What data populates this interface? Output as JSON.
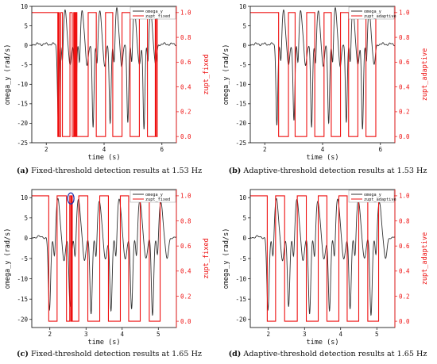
{
  "colors": {
    "omega": "#333333",
    "zupt": "#ee1111",
    "axis_right": "#ee1111",
    "marker": "#2233aa"
  },
  "chart_data": [
    {
      "type": "line",
      "panel_letter": "(a)",
      "caption_text": "Fixed-threshold detection results at 1.53 Hz",
      "xlabel": "time (s)",
      "ylabel_left": "omega_y (rad/s)",
      "ylabel_right": "zupt_fixed",
      "xlim": [
        1.5,
        6.5
      ],
      "xticks": [
        2,
        4,
        6
      ],
      "xtick_labels": [
        "2",
        "4",
        "6"
      ],
      "ylim_left": [
        -25,
        10
      ],
      "yticks_left": [
        10,
        5,
        0,
        -5,
        -10,
        -15,
        -20,
        -25
      ],
      "yticks_left_labels": [
        "10",
        "5",
        "0",
        "-5",
        "-10",
        "-15",
        "-20",
        "-25"
      ],
      "ylim_right": [
        -0.05,
        1.05
      ],
      "yticks_right": [
        1.0,
        0.8,
        0.6,
        0.4,
        0.2,
        0.0
      ],
      "yticks_right_labels": [
        "1.0",
        "0.8",
        "0.6",
        "0.4",
        "0.2",
        "0.0"
      ],
      "legend": [
        "omega_y",
        "zupt_fixed"
      ],
      "series": [
        {
          "name": "omega_y",
          "axis": "left",
          "swing_times": [
            2.58,
            3.17,
            3.78,
            4.37,
            4.98,
            5.54
          ],
          "baseline": 0.3,
          "peak": 9.3,
          "trough": -21.5
        },
        {
          "name": "zupt_fixed",
          "axis": "right",
          "transitions": [
            [
              1.5,
              1
            ],
            [
              2.4,
              0
            ],
            [
              2.42,
              1
            ],
            [
              2.45,
              0
            ],
            [
              2.5,
              1
            ],
            [
              2.56,
              0
            ],
            [
              2.82,
              1
            ],
            [
              2.9,
              0
            ],
            [
              2.95,
              1
            ],
            [
              2.97,
              0
            ],
            [
              2.99,
              1
            ],
            [
              3.02,
              0
            ],
            [
              3.04,
              1
            ],
            [
              3.06,
              0
            ],
            [
              3.45,
              1
            ],
            [
              3.73,
              0
            ],
            [
              4.05,
              1
            ],
            [
              4.3,
              0
            ],
            [
              4.62,
              1
            ],
            [
              4.9,
              0
            ],
            [
              5.22,
              1
            ],
            [
              5.5,
              0
            ],
            [
              5.77,
              1
            ],
            [
              5.8,
              0
            ],
            [
              5.84,
              1
            ],
            [
              6.5,
              1
            ]
          ]
        }
      ]
    },
    {
      "type": "line",
      "panel_letter": "(b)",
      "caption_text": "Adaptive-threshold detection results at 1.53 Hz",
      "xlabel": "time (s)",
      "ylabel_left": "omega_y (rad/s)",
      "ylabel_right": "zupt_adaptive",
      "xlim": [
        1.5,
        6.5
      ],
      "xticks": [
        2,
        4,
        6
      ],
      "xtick_labels": [
        "2",
        "4",
        "6"
      ],
      "ylim_left": [
        -25,
        10
      ],
      "yticks_left": [
        10,
        5,
        0,
        -5,
        -10,
        -15,
        -20,
        -25
      ],
      "yticks_left_labels": [
        "10",
        "5",
        "0",
        "-5",
        "-10",
        "-15",
        "-20",
        "-25"
      ],
      "ylim_right": [
        -0.05,
        1.05
      ],
      "yticks_right": [
        1.0,
        0.8,
        0.6,
        0.4,
        0.2,
        0.0
      ],
      "yticks_right_labels": [
        "1.0",
        "0.8",
        "0.6",
        "0.4",
        "0.2",
        "0.0"
      ],
      "legend": [
        "omega_y",
        "zupt_adaptive"
      ],
      "series": [
        {
          "name": "omega_y",
          "axis": "left",
          "swing_times": [
            2.58,
            3.17,
            3.78,
            4.37,
            4.98,
            5.54
          ],
          "baseline": 0.3,
          "peak": 9.3,
          "trough": -21.5
        },
        {
          "name": "zupt_adaptive",
          "axis": "right",
          "transitions": [
            [
              1.5,
              1
            ],
            [
              2.48,
              0
            ],
            [
              2.82,
              1
            ],
            [
              3.05,
              0
            ],
            [
              3.45,
              1
            ],
            [
              3.73,
              0
            ],
            [
              4.05,
              1
            ],
            [
              4.3,
              0
            ],
            [
              4.62,
              1
            ],
            [
              4.9,
              0
            ],
            [
              5.22,
              1
            ],
            [
              5.5,
              0
            ],
            [
              5.84,
              1
            ],
            [
              6.5,
              1
            ]
          ]
        }
      ]
    },
    {
      "type": "line",
      "panel_letter": "(c)",
      "caption_text": "Fixed-threshold detection results at 1.65 Hz",
      "xlabel": "time (s)",
      "ylabel_left": "omega_y (rad/s)",
      "ylabel_right": "zupt_fixed",
      "xlim": [
        1.5,
        5.5
      ],
      "xticks": [
        2,
        3,
        4,
        5
      ],
      "xtick_labels": [
        "2",
        "3",
        "4",
        "5"
      ],
      "ylim_left": [
        -22,
        12
      ],
      "yticks_left": [
        10,
        5,
        0,
        -5,
        -10,
        -15,
        -20
      ],
      "yticks_left_labels": [
        "10",
        "5",
        "0",
        "-5",
        "-10",
        "-15",
        "-20"
      ],
      "ylim_right": [
        -0.05,
        1.05
      ],
      "yticks_right": [
        1.0,
        0.8,
        0.6,
        0.4,
        0.2,
        0.0
      ],
      "yticks_right_labels": [
        "1.0",
        "0.8",
        "0.6",
        "0.4",
        "0.2",
        "0.0"
      ],
      "legend": [
        "omega_y",
        "zupt_fixed"
      ],
      "highlight": {
        "x": 2.58,
        "y": 9.8
      },
      "series": [
        {
          "name": "omega_y",
          "axis": "left",
          "swing_times": [
            2.15,
            2.72,
            3.3,
            3.85,
            4.42,
            5.0
          ],
          "baseline": 0.3,
          "peak": 9.5,
          "trough": -19.0
        },
        {
          "name": "zupt_fixed",
          "axis": "right",
          "transitions": [
            [
              1.5,
              1
            ],
            [
              1.97,
              0
            ],
            [
              2.2,
              1
            ],
            [
              2.46,
              0
            ],
            [
              2.55,
              1
            ],
            [
              2.58,
              0
            ],
            [
              2.6,
              1
            ],
            [
              2.62,
              0
            ],
            [
              2.8,
              1
            ],
            [
              3.05,
              0
            ],
            [
              3.38,
              1
            ],
            [
              3.62,
              0
            ],
            [
              3.95,
              1
            ],
            [
              4.18,
              0
            ],
            [
              4.5,
              1
            ],
            [
              4.75,
              0
            ],
            [
              5.05,
              1
            ],
            [
              5.5,
              1
            ]
          ]
        }
      ]
    },
    {
      "type": "line",
      "panel_letter": "(d)",
      "caption_text": "Adaptive-threshold detection results at 1.65 Hz",
      "xlabel": "time (s)",
      "ylabel_left": "omega_y (rad/s)",
      "ylabel_right": "zupt_adaptive",
      "xlim": [
        1.5,
        5.5
      ],
      "xticks": [
        2,
        3,
        4,
        5
      ],
      "xtick_labels": [
        "2",
        "3",
        "4",
        "5"
      ],
      "ylim_left": [
        -22,
        12
      ],
      "yticks_left": [
        10,
        5,
        0,
        -5,
        -10,
        -15,
        -20
      ],
      "yticks_left_labels": [
        "10",
        "5",
        "0",
        "-5",
        "-10",
        "-15",
        "-20"
      ],
      "ylim_right": [
        -0.05,
        1.05
      ],
      "yticks_right": [
        1.0,
        0.8,
        0.6,
        0.4,
        0.2,
        0.0
      ],
      "yticks_right_labels": [
        "1.0",
        "0.8",
        "0.6",
        "0.4",
        "0.2",
        "0.0"
      ],
      "legend": [
        "omega_y",
        "zupt_adaptive"
      ],
      "series": [
        {
          "name": "omega_y",
          "axis": "left",
          "swing_times": [
            2.15,
            2.72,
            3.3,
            3.85,
            4.42,
            5.0
          ],
          "baseline": 0.3,
          "peak": 9.5,
          "trough": -19.0
        },
        {
          "name": "zupt_adaptive",
          "axis": "right",
          "transitions": [
            [
              1.5,
              1
            ],
            [
              1.97,
              0
            ],
            [
              2.2,
              1
            ],
            [
              2.45,
              0
            ],
            [
              2.8,
              1
            ],
            [
              3.05,
              0
            ],
            [
              3.38,
              1
            ],
            [
              3.62,
              0
            ],
            [
              3.95,
              1
            ],
            [
              4.18,
              0
            ],
            [
              4.5,
              1
            ],
            [
              4.75,
              0
            ],
            [
              5.05,
              1
            ],
            [
              5.5,
              1
            ]
          ]
        }
      ]
    }
  ]
}
